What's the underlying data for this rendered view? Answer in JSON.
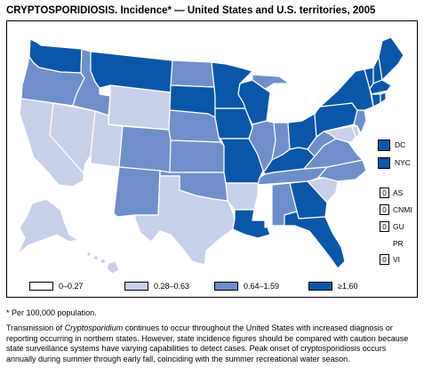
{
  "title": "CRYPTOSPORIDIOSIS. Incidence* — United States and U.S. territories, 2005",
  "colors": {
    "class0": "#ffffff",
    "class1": "#c8d0ea",
    "class2": "#6f8fca",
    "class3": "#0a56a8",
    "outline": "#000000"
  },
  "legend": [
    {
      "label": "0–0.27",
      "class": "class0"
    },
    {
      "label": "0.28–0.63",
      "class": "class1"
    },
    {
      "label": "0.64–1.59",
      "class": "class2"
    },
    {
      "label": "≥1.60",
      "class": "class3"
    }
  ],
  "side_areas": [
    {
      "label": "DC",
      "class": "class3"
    },
    {
      "label": "NYC",
      "class": "class3"
    }
  ],
  "territories": [
    {
      "label": "AS",
      "value": "0"
    },
    {
      "label": "CNMI",
      "value": "0"
    },
    {
      "label": "GU",
      "value": "0"
    },
    {
      "label": "PR",
      "value": ""
    },
    {
      "label": "VI",
      "value": "0"
    }
  ],
  "states": {
    "WA": "class3",
    "OR": "class2",
    "CA": "class1",
    "NV": "class1",
    "ID": "class2",
    "MT": "class3",
    "WY": "class1",
    "UT": "class1",
    "AZ": "class0",
    "NM": "class2",
    "CO": "class2",
    "ND": "class2",
    "SD": "class3",
    "NE": "class2",
    "KS": "class2",
    "OK": "class2",
    "TX": "class1",
    "MN": "class3",
    "IA": "class3",
    "MO": "class3",
    "AR": "class1",
    "LA": "class3",
    "WI": "class3",
    "IL": "class2",
    "MI": "class2",
    "IN": "class2",
    "OH": "class3",
    "KY": "class3",
    "TN": "class2",
    "MS": "class0",
    "AL": "class2",
    "GA": "class3",
    "FL": "class3",
    "SC": "class1",
    "NC": "class2",
    "VA": "class2",
    "WV": "class2",
    "PA": "class3",
    "NY": "class3",
    "VT": "class3",
    "NH": "class3",
    "ME": "class3",
    "MA": "class3",
    "CT": "class3",
    "RI": "class3",
    "NJ": "class2",
    "DE": "class1",
    "MD": "class1",
    "AK": "class1",
    "HI": "class1"
  },
  "footnote": "* Per 100,000 population.",
  "description": {
    "p1": "Transmission of ",
    "italic": "Cryptosporidium",
    "p2": " continues to occur throughout the United States with increased diagnosis or reporting occurring in northern states. However, state incidence figures should be compared with caution because state surveillance systems have varying capabilities to detect cases. Peak onset of cryptosporidiosis occurs annually during summer through early fall, coinciding with the summer recreational water season."
  }
}
